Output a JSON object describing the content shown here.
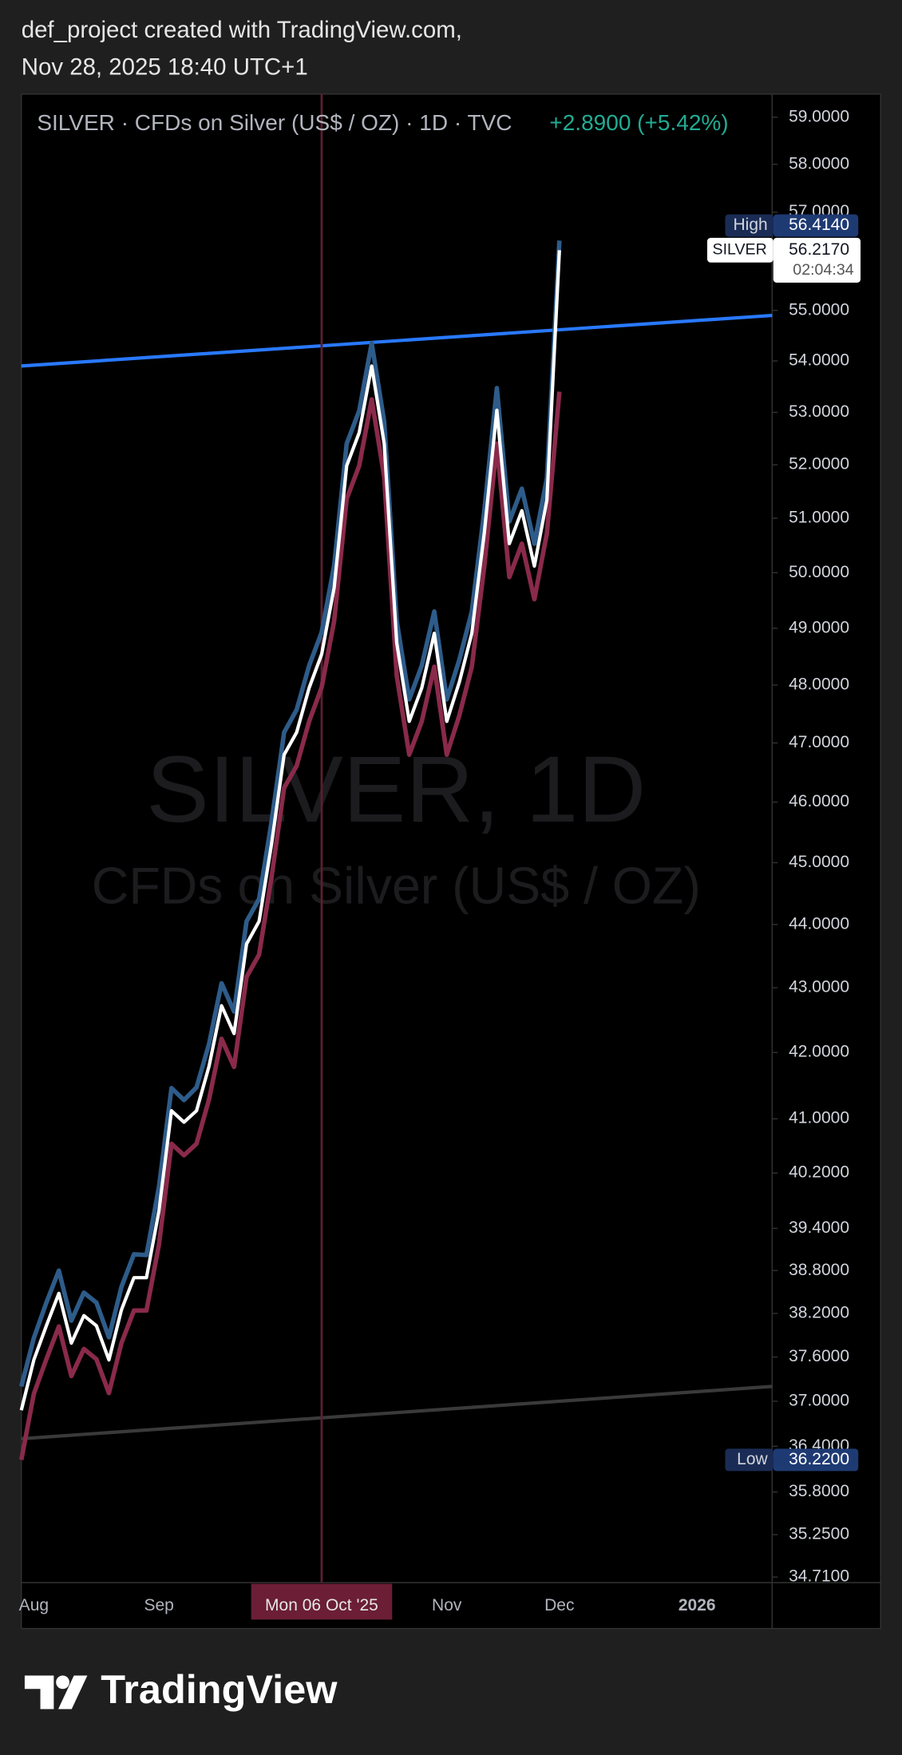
{
  "header": [
    "def_project created with TradingView.com,",
    "Nov 28, 2025 18:40 UTC+1"
  ],
  "logo": "TradingView",
  "chart_data": {
    "type": "line",
    "symbol_line": "SILVER · CFDs on Silver (US$ / OZ) · 1D · TVC",
    "change": "+2.8900 (+5.42%)",
    "change_color": "#22ab94",
    "watermark": {
      "title": "SILVER, 1D",
      "subtitle": "CFDs on Silver (US$ / OZ)"
    },
    "log_scale": true,
    "grid": false,
    "crosshair": true,
    "categories": [
      null,
      "Aug",
      null,
      null,
      null,
      null,
      null,
      null,
      null,
      null,
      null,
      "Sep",
      null,
      null,
      null,
      null,
      null,
      null,
      null,
      null,
      null,
      null,
      null,
      null,
      "Mon 06 Oct '25",
      null,
      null,
      null,
      null,
      null,
      null,
      null,
      null,
      null,
      "Nov",
      null,
      null,
      null,
      null,
      null,
      null,
      null,
      null,
      "Dec",
      null,
      null,
      null,
      null,
      null,
      null,
      null,
      null,
      null,
      null,
      "2026",
      null,
      null,
      null,
      null,
      null,
      null
    ],
    "series": [
      {
        "color": "#8a2a4a",
        "values": [
          36.22,
          37.1,
          37.57,
          38.02,
          37.34,
          37.71,
          37.57,
          37.11,
          37.79,
          38.24,
          38.24,
          39.17,
          40.63,
          40.46,
          40.63,
          41.29,
          42.21,
          41.78,
          43.17,
          43.52,
          44.77,
          46.24,
          46.61,
          47.37,
          47.96,
          49.13,
          51.36,
          51.98,
          53.25,
          51.77,
          48.16,
          46.8,
          47.37,
          48.32,
          46.8,
          47.47,
          48.32,
          50.12,
          52.4,
          49.92,
          50.53,
          49.52,
          50.72,
          53.4,
          null,
          null,
          null,
          null,
          null,
          null,
          null,
          null,
          null,
          null,
          null,
          null,
          null,
          null,
          null,
          null,
          null
        ]
      },
      {
        "color": "#2e5c8a",
        "values": [
          37.2,
          37.86,
          38.35,
          38.8,
          38.1,
          38.49,
          38.35,
          37.87,
          38.57,
          39.03,
          39.02,
          40.0,
          41.46,
          41.28,
          41.47,
          42.13,
          43.07,
          42.63,
          44.05,
          44.41,
          45.68,
          47.18,
          47.57,
          48.34,
          48.93,
          50.13,
          52.4,
          53.03,
          54.35,
          52.82,
          49.13,
          47.75,
          48.34,
          49.3,
          47.75,
          48.44,
          49.3,
          51.14,
          53.47,
          50.94,
          51.55,
          50.53,
          51.75,
          56.414,
          null,
          null,
          null,
          null,
          null,
          null,
          null,
          null,
          null,
          null,
          null,
          null,
          null,
          null,
          null,
          null,
          null
        ]
      },
      {
        "color": "#ffffff",
        "values": [
          36.88,
          37.56,
          38.03,
          38.48,
          37.79,
          38.17,
          38.03,
          37.56,
          38.25,
          38.7,
          38.7,
          39.65,
          41.12,
          40.95,
          41.12,
          41.79,
          42.72,
          42.29,
          43.69,
          44.05,
          45.31,
          46.8,
          47.18,
          47.95,
          48.54,
          49.73,
          51.98,
          52.61,
          53.9,
          52.4,
          48.74,
          47.37,
          47.95,
          48.91,
          47.37,
          48.05,
          48.91,
          50.73,
          53.04,
          50.53,
          51.14,
          50.12,
          51.34,
          56.217,
          null,
          null,
          null,
          null,
          null,
          null,
          null,
          null,
          null,
          null,
          null,
          null,
          null,
          null,
          null,
          null,
          null
        ]
      }
    ],
    "trendlines": [
      {
        "color": "#2979ff",
        "values": [
          53.9,
          54.9
        ]
      },
      {
        "color": "#3a3a3a",
        "values": [
          36.5,
          37.2
        ]
      }
    ],
    "ylim": [
      34.64,
      59.5
    ],
    "yticks": [
      {
        "value": 59,
        "label": "59.0000"
      },
      {
        "value": 58,
        "label": "58.0000"
      },
      {
        "value": 57,
        "label": "57.0000"
      },
      {
        "value": 55,
        "label": "55.0000"
      },
      {
        "value": 54,
        "label": "54.0000"
      },
      {
        "value": 53,
        "label": "53.0000"
      },
      {
        "value": 52,
        "label": "52.0000"
      },
      {
        "value": 51,
        "label": "51.0000"
      },
      {
        "value": 50,
        "label": "50.0000"
      },
      {
        "value": 49,
        "label": "49.0000"
      },
      {
        "value": 48,
        "label": "48.0000"
      },
      {
        "value": 47,
        "label": "47.0000"
      },
      {
        "value": 46,
        "label": "46.0000"
      },
      {
        "value": 45,
        "label": "45.0000"
      },
      {
        "value": 44,
        "label": "44.0000"
      },
      {
        "value": 43,
        "label": "43.0000"
      },
      {
        "value": 42,
        "label": "42.0000"
      },
      {
        "value": 41,
        "label": "41.0000"
      },
      {
        "value": 40.2,
        "label": "40.2000"
      },
      {
        "value": 39.4,
        "label": "39.4000"
      },
      {
        "value": 38.8,
        "label": "38.8000"
      },
      {
        "value": 38.2,
        "label": "38.2000"
      },
      {
        "value": 37.6,
        "label": "37.6000"
      },
      {
        "value": 37,
        "label": "37.0000"
      },
      {
        "value": 36.4,
        "label": "36.4000"
      },
      {
        "value": 35.8,
        "label": "35.8000"
      },
      {
        "value": 35.25,
        "label": "35.2500"
      },
      {
        "value": 34.71,
        "label": "34.7100"
      }
    ],
    "high": {
      "label": "High",
      "value": 56.414,
      "value_label": "56.4140"
    },
    "low": {
      "label": "Low",
      "value": 36.22,
      "value_label": "36.2200"
    },
    "last_price": {
      "label": "SILVER",
      "value": 56.217,
      "value_label": "56.2170",
      "countdown": "02:04:34"
    }
  }
}
